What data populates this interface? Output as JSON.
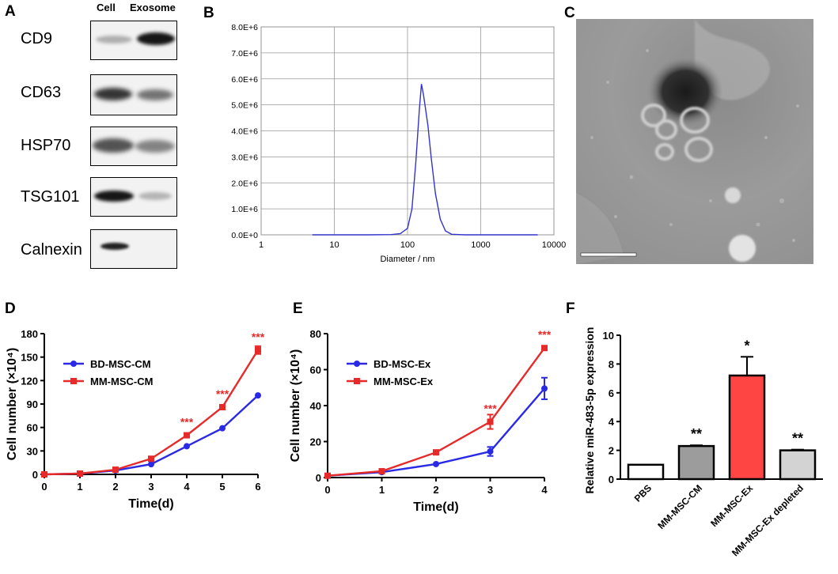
{
  "panel_labels": [
    "A",
    "B",
    "C",
    "D",
    "E",
    "F"
  ],
  "panel_a": {
    "columns": [
      "Cell",
      "Exosome"
    ],
    "markers": [
      {
        "name": "CD9",
        "cell": 0.3,
        "exosome": 0.95
      },
      {
        "name": "CD63",
        "cell": 0.85,
        "exosome": 0.6
      },
      {
        "name": "HSP70",
        "cell": 0.75,
        "exosome": 0.55
      },
      {
        "name": "TSG101",
        "cell": 0.95,
        "exosome": 0.3
      },
      {
        "name": "Calnexin",
        "cell": 0.9,
        "exosome": 0.0
      }
    ]
  },
  "panel_c": {
    "description_label": "",
    "scale_bar": true
  },
  "chart_data": [
    {
      "panel": "B",
      "type": "line",
      "xlabel": "Diameter / nm",
      "ylabel": "",
      "xscale": "log",
      "xlim": [
        1,
        10000
      ],
      "ylim": [
        0,
        8000000
      ],
      "xticks": [
        "1",
        "10",
        "100",
        "1000",
        "10000"
      ],
      "yticks": [
        "0.0E+0",
        "1.0E+6",
        "2.0E+6",
        "3.0E+6",
        "4.0E+6",
        "5.0E+6",
        "6.0E+6",
        "7.0E+6",
        "8.0E+6"
      ],
      "grid": true,
      "series": [
        {
          "name": "size distribution",
          "color": "#3333cc",
          "x": [
            5,
            30,
            60,
            80,
            100,
            115,
            130,
            145,
            155,
            165,
            175,
            190,
            210,
            240,
            280,
            330,
            400,
            600,
            1000,
            6000
          ],
          "y": [
            0,
            0,
            10000,
            50000,
            250000,
            1000000,
            2800000,
            4800000,
            5800000,
            5400000,
            4900000,
            4200000,
            3000000,
            1600000,
            600000,
            150000,
            20000,
            0,
            0,
            0
          ]
        }
      ]
    },
    {
      "panel": "D",
      "type": "line",
      "xlabel": "Time(d)",
      "ylabel": "Cell number (×10⁴)",
      "xlim": [
        0,
        6
      ],
      "ylim": [
        0,
        180
      ],
      "xticks": [
        "0",
        "1",
        "2",
        "3",
        "4",
        "5",
        "6"
      ],
      "yticks": [
        "0",
        "30",
        "60",
        "90",
        "120",
        "150",
        "180"
      ],
      "legend": "top-left",
      "series": [
        {
          "name": "BD-MSC-CM",
          "color": "#2a2ae6",
          "marker": "circle",
          "x": [
            0,
            1,
            2,
            3,
            4,
            5,
            6
          ],
          "y": [
            0,
            1,
            5,
            13,
            36,
            59,
            101
          ],
          "err": [
            0,
            0,
            0,
            0,
            0,
            0,
            0
          ]
        },
        {
          "name": "MM-MSC-CM",
          "color": "#e62a2a",
          "marker": "square",
          "x": [
            0,
            1,
            2,
            3,
            4,
            5,
            6
          ],
          "y": [
            0,
            1,
            6,
            20,
            50,
            86,
            159
          ],
          "err": [
            0,
            0,
            0,
            0,
            0,
            3,
            5
          ]
        }
      ],
      "annotations": [
        {
          "x": 4,
          "y": 50,
          "text": "***"
        },
        {
          "x": 5,
          "y": 86,
          "text": "***"
        },
        {
          "x": 6,
          "y": 159,
          "text": "***"
        }
      ]
    },
    {
      "panel": "E",
      "type": "line",
      "xlabel": "Time(d)",
      "ylabel": "Cell number (×10⁴)",
      "xlim": [
        0,
        4
      ],
      "ylim": [
        0,
        80
      ],
      "xticks": [
        "0",
        "1",
        "2",
        "3",
        "4"
      ],
      "yticks": [
        "0",
        "20",
        "40",
        "60",
        "80"
      ],
      "legend": "top-left",
      "series": [
        {
          "name": "BD-MSC-Ex",
          "color": "#2a2ae6",
          "marker": "circle",
          "x": [
            0,
            1,
            2,
            3,
            4
          ],
          "y": [
            1,
            3,
            7.5,
            14.5,
            49.5
          ],
          "err": [
            0,
            0,
            0,
            2.5,
            6
          ]
        },
        {
          "name": "MM-MSC-Ex",
          "color": "#e62a2a",
          "marker": "square",
          "x": [
            0,
            1,
            2,
            3,
            4
          ],
          "y": [
            1,
            3.5,
            14,
            31,
            72
          ],
          "err": [
            0,
            0,
            0,
            4,
            0
          ]
        }
      ],
      "annotations": [
        {
          "x": 3,
          "y": 31,
          "text": "***"
        },
        {
          "x": 4,
          "y": 72,
          "text": "***"
        }
      ]
    },
    {
      "panel": "F",
      "type": "bar",
      "xlabel": "",
      "ylabel": "Relative miR-483-5p expression",
      "ylim": [
        0,
        10
      ],
      "yticks": [
        "0",
        "2",
        "4",
        "6",
        "8",
        "10"
      ],
      "categories": [
        "PBS",
        "MM-MSC-CM",
        "MM-MSC-Ex",
        "MM-MSC-Ex depleted"
      ],
      "values": [
        1.0,
        2.3,
        7.2,
        2.0
      ],
      "errors": [
        0,
        0.05,
        1.3,
        0.05
      ],
      "colors": [
        "#ffffff",
        "#9c9c9c",
        "#ff4444",
        "#d3d3d3"
      ],
      "significance": [
        "",
        "**",
        "*",
        "**"
      ]
    }
  ]
}
